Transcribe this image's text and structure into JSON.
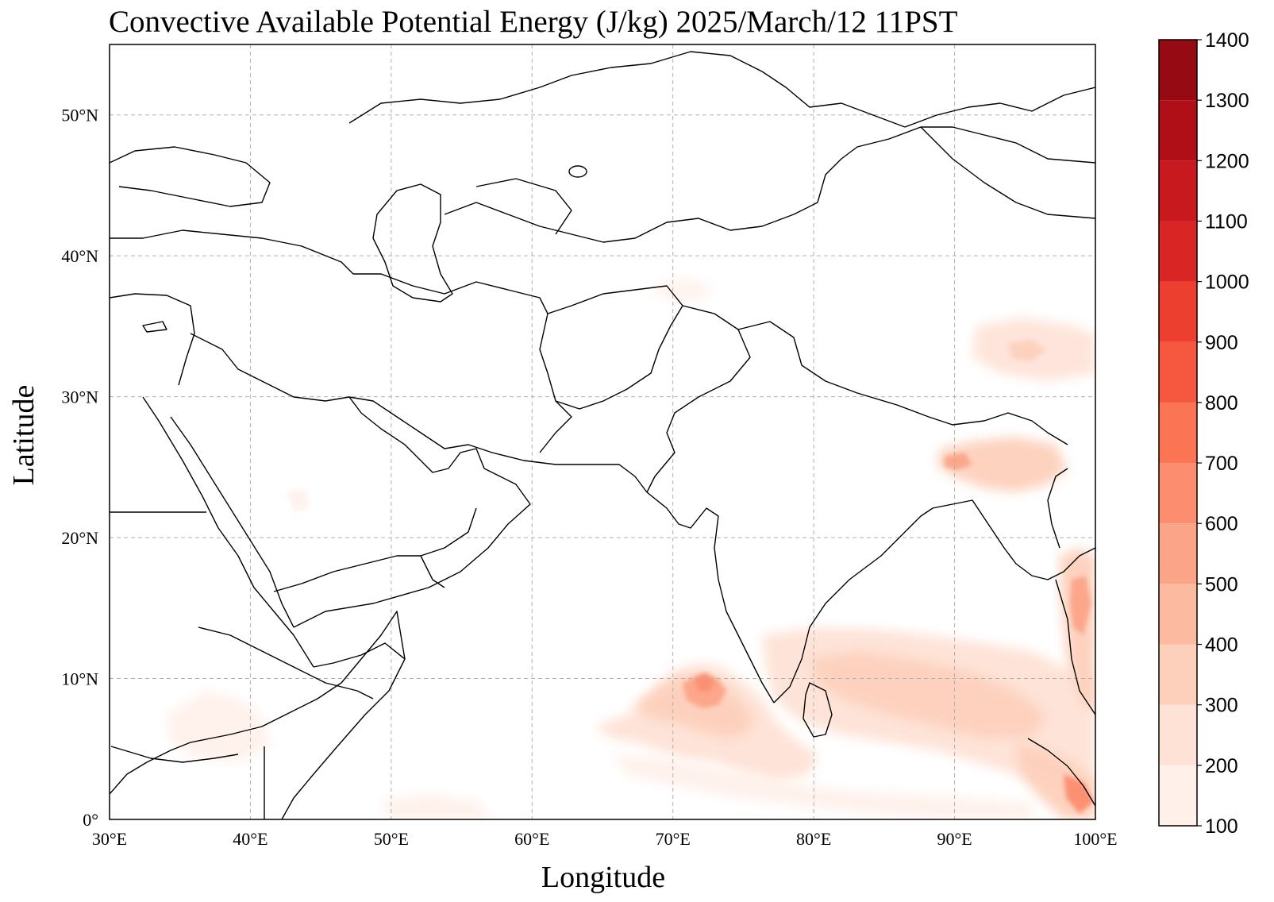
{
  "title": "Convective Available Potential Energy (J/kg)  2025/March/12 11PST",
  "xlabel": "Longitude",
  "ylabel": "Latitude",
  "map": {
    "lon_range": [
      30,
      100
    ],
    "lat_range": [
      0,
      55
    ],
    "lon_ticks": [
      30,
      40,
      50,
      60,
      70,
      80,
      90,
      100
    ],
    "lat_ticks": [
      0,
      10,
      20,
      30,
      40,
      50
    ],
    "lon_tick_labels": [
      "30°E",
      "40°E",
      "50°E",
      "60°E",
      "70°E",
      "80°E",
      "90°E",
      "100°E"
    ],
    "lat_tick_labels": [
      "0°",
      "10°N",
      "20°N",
      "30°N",
      "40°N",
      "50°N"
    ],
    "gridlines": true
  },
  "colorbar": {
    "levels": [
      100,
      200,
      300,
      400,
      500,
      600,
      700,
      800,
      900,
      1000,
      1100,
      1200,
      1300,
      1400
    ],
    "colors": [
      "#fff0ea",
      "#fee2d6",
      "#fdd0bc",
      "#fcbba1",
      "#fca488",
      "#fc8d6f",
      "#fb7555",
      "#f6583f",
      "#ec3f2f",
      "#d92523",
      "#c8191e",
      "#b10f17",
      "#960a14"
    ],
    "colormap": "Reds"
  },
  "chart_data": {
    "type": "heatmap",
    "title": "Convective Available Potential Energy (J/kg)  2025/March/12 11PST",
    "xlabel": "Longitude",
    "ylabel": "Latitude",
    "xlim": [
      30,
      100
    ],
    "ylim": [
      0,
      55
    ],
    "units": "J/kg",
    "value_range": [
      100,
      1400
    ],
    "regions": [
      {
        "lon_range": [
          65,
          79
        ],
        "lat_range": [
          2,
          12
        ],
        "cape": 300
      },
      {
        "lon_range": [
          70,
          74
        ],
        "lat_range": [
          7,
          11
        ],
        "cape": 500
      },
      {
        "lon_range": [
          78,
          100
        ],
        "lat_range": [
          4,
          14
        ],
        "cape": 200
      },
      {
        "lon_range": [
          96,
          100
        ],
        "lat_range": [
          8,
          19
        ],
        "cape": 400
      },
      {
        "lon_range": [
          88,
          96
        ],
        "lat_range": [
          24,
          29
        ],
        "cape": 300
      },
      {
        "lon_range": [
          90,
          100
        ],
        "lat_range": [
          31,
          35
        ],
        "cape": 200
      },
      {
        "lon_range": [
          95,
          100
        ],
        "lat_range": [
          0,
          6
        ],
        "cape": 500
      },
      {
        "lon_range": [
          48,
          60
        ],
        "lat_range": [
          0,
          2
        ],
        "cape": 150
      },
      {
        "lon_range": [
          36,
          48
        ],
        "lat_range": [
          2,
          10
        ],
        "cape": 150
      }
    ]
  }
}
